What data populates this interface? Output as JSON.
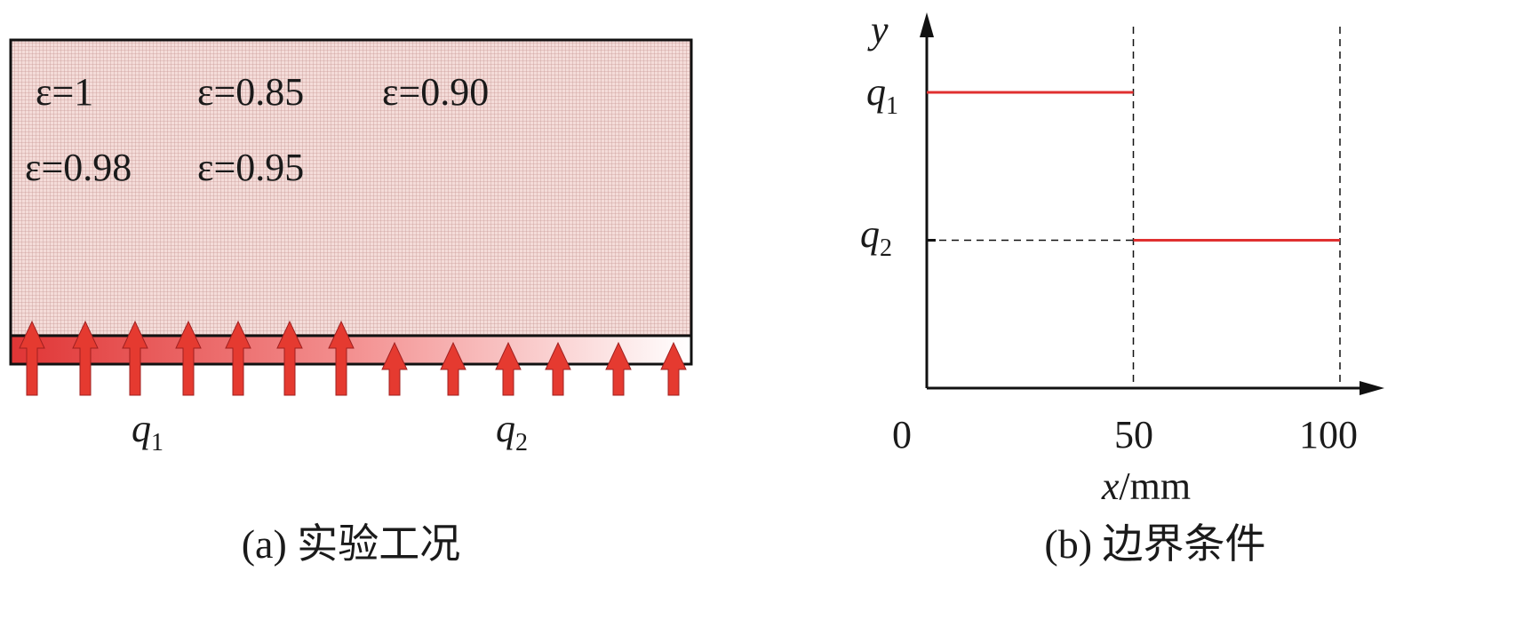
{
  "panel_a": {
    "caption": "(a) 实验工况",
    "emissivity_labels": [
      "ε=1",
      "ε=0.85",
      "ε=0.90",
      "ε=0.98",
      "ε=0.95"
    ],
    "flux_labels": {
      "q1_base": "q",
      "q1_sub": "1",
      "q2_base": "q",
      "q2_sub": "2"
    },
    "colors": {
      "mesh": "#f2d6d3",
      "heater": "#e03535",
      "arrow": "#e53a30"
    }
  },
  "panel_b": {
    "caption": "(b) 边界条件",
    "y_axis_label": "y",
    "x_axis_label_var": "x",
    "x_axis_label_unit": "/mm",
    "x_ticks": [
      "0",
      "50",
      "100"
    ],
    "y_ticks": [
      {
        "base": "q",
        "sub": "1"
      },
      {
        "base": "q",
        "sub": "2"
      }
    ],
    "colors": {
      "line": "#e03030"
    }
  },
  "chart_data": {
    "type": "line",
    "xlabel": "x/mm",
    "ylabel": "y",
    "xlim": [
      0,
      100
    ],
    "series": [
      {
        "name": "q1",
        "x": [
          0,
          50
        ],
        "y": [
          2,
          2
        ]
      },
      {
        "name": "q2",
        "x": [
          50,
          100
        ],
        "y": [
          1,
          1
        ]
      }
    ],
    "yticks_values": [
      2,
      1
    ],
    "xticks_values": [
      0,
      50,
      100
    ]
  }
}
